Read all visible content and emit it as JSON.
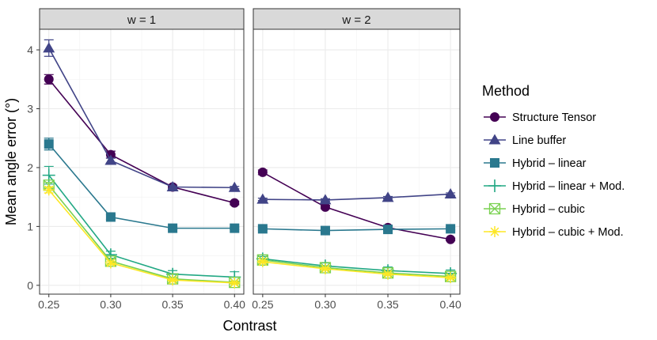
{
  "chart_data": {
    "type": "line",
    "xlabel": "Contrast",
    "ylabel": "Mean angle error (°)",
    "x": [
      0.25,
      0.3,
      0.35,
      0.4
    ],
    "x_tick_labels": [
      "0.25",
      "0.30",
      "0.35",
      "0.40"
    ],
    "y_ticks": [
      0,
      1,
      2,
      3,
      4
    ],
    "y_tick_labels": [
      "0",
      "1",
      "2",
      "3",
      "4"
    ],
    "xlim": [
      0.2425,
      0.4075
    ],
    "ylim": [
      -0.15,
      4.35
    ],
    "grid": true,
    "legend": {
      "title": "Method",
      "position": "right"
    },
    "panels": [
      {
        "label": "w = 1",
        "series": [
          {
            "name": "Structure Tensor",
            "color": "#440154",
            "marker": "circle",
            "values": [
              3.5,
              2.22,
              1.67,
              1.4
            ],
            "errors": [
              0.08,
              0.06,
              0.03,
              0.03
            ]
          },
          {
            "name": "Line buffer",
            "color": "#414487",
            "marker": "triangle",
            "values": [
              4.03,
              2.12,
              1.67,
              1.66
            ],
            "errors": [
              0.14,
              0.04,
              0.02,
              0.02
            ]
          },
          {
            "name": "Hybrid – linear",
            "color": "#2A788E",
            "marker": "square",
            "values": [
              2.4,
              1.16,
              0.97,
              0.97
            ],
            "errors": [
              0.1,
              0.04,
              0.02,
              0.02
            ]
          },
          {
            "name": "Hybrid – linear + Mod.",
            "color": "#22A884",
            "marker": "plus",
            "values": [
              1.87,
              0.52,
              0.19,
              0.14
            ],
            "errors": [
              0.15,
              0.06,
              0.06,
              0.09
            ]
          },
          {
            "name": "Hybrid – cubic",
            "color": "#7AD151",
            "marker": "squarecross",
            "values": [
              1.7,
              0.41,
              0.11,
              0.05
            ],
            "errors": [
              0.05,
              0.03,
              0.02,
              0.02
            ]
          },
          {
            "name": "Hybrid – cubic + Mod.",
            "color": "#FDE725",
            "marker": "asterisk",
            "values": [
              1.62,
              0.38,
              0.09,
              0.04
            ],
            "errors": [
              0.05,
              0.03,
              0.02,
              0.02
            ]
          }
        ]
      },
      {
        "label": "w = 2",
        "series": [
          {
            "name": "Structure Tensor",
            "color": "#440154",
            "marker": "circle",
            "values": [
              1.92,
              1.33,
              0.98,
              0.78
            ],
            "errors": [
              0.04,
              0.03,
              0.02,
              0.02
            ]
          },
          {
            "name": "Line buffer",
            "color": "#414487",
            "marker": "triangle",
            "values": [
              1.46,
              1.45,
              1.49,
              1.55
            ],
            "errors": [
              0.02,
              0.02,
              0.02,
              0.02
            ]
          },
          {
            "name": "Hybrid – linear",
            "color": "#2A788E",
            "marker": "square",
            "values": [
              0.96,
              0.93,
              0.95,
              0.96
            ],
            "errors": [
              0.02,
              0.02,
              0.02,
              0.02
            ]
          },
          {
            "name": "Hybrid – linear + Mod.",
            "color": "#22A884",
            "marker": "plus",
            "values": [
              0.45,
              0.33,
              0.25,
              0.2
            ],
            "errors": [
              0.04,
              0.05,
              0.06,
              0.06
            ]
          },
          {
            "name": "Hybrid – cubic",
            "color": "#7AD151",
            "marker": "squarecross",
            "values": [
              0.43,
              0.3,
              0.21,
              0.15
            ],
            "errors": [
              0.02,
              0.02,
              0.02,
              0.02
            ]
          },
          {
            "name": "Hybrid – cubic + Mod.",
            "color": "#FDE725",
            "marker": "asterisk",
            "values": [
              0.4,
              0.28,
              0.19,
              0.13
            ],
            "errors": [
              0.02,
              0.02,
              0.02,
              0.02
            ]
          }
        ]
      }
    ]
  }
}
